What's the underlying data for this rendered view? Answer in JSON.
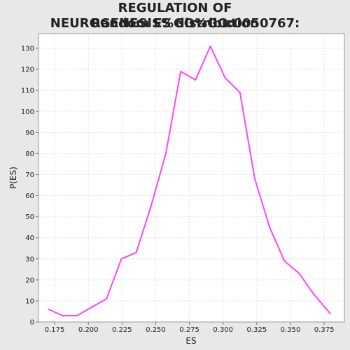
{
  "chart_data": {
    "type": "line",
    "title_line1": "REGULATION OF NEUROGENESIS%GO%GO:0050767:",
    "title_line2": "Random ES distribution",
    "xlabel": "ES",
    "ylabel": "P(ES)",
    "xlim": [
      0.163,
      0.39
    ],
    "ylim": [
      0,
      137
    ],
    "x_ticks": [
      "0.175",
      "0.200",
      "0.225",
      "0.250",
      "0.275",
      "0.300",
      "0.325",
      "0.350",
      "0.375"
    ],
    "y_ticks": [
      "0",
      "10",
      "20",
      "30",
      "40",
      "50",
      "60",
      "70",
      "80",
      "90",
      "100",
      "110",
      "120",
      "130"
    ],
    "grid": true,
    "series": [
      {
        "color": "#ff44ff",
        "x": [
          0.1705,
          0.181,
          0.1915,
          0.2025,
          0.2135,
          0.2245,
          0.2355,
          0.2465,
          0.2575,
          0.2685,
          0.2795,
          0.2905,
          0.3015,
          0.3125,
          0.3235,
          0.3345,
          0.3455,
          0.3565,
          0.3675,
          0.3795
        ],
        "y": [
          6,
          3,
          3,
          7,
          11,
          30,
          33,
          55,
          80,
          119,
          115,
          131,
          116,
          109,
          68,
          45,
          29,
          23,
          13,
          4
        ]
      }
    ]
  }
}
